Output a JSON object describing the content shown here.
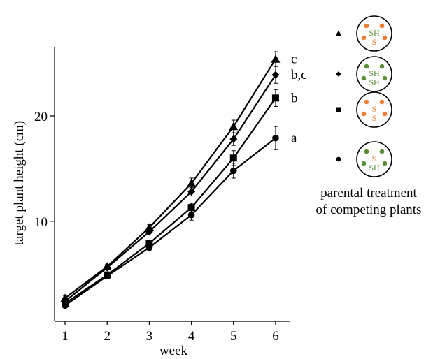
{
  "colors": {
    "orange": "#ee7d36",
    "green": "#5a8e3a",
    "line": "#000000"
  },
  "chart_data": {
    "type": "line",
    "title": "",
    "xlabel": "week",
    "ylabel": "target plant height (cm)",
    "x": [
      1,
      2,
      3,
      4,
      5,
      6
    ],
    "xticks": [
      "1",
      "2",
      "3",
      "4",
      "5",
      "6"
    ],
    "yticks": [
      "10",
      "20"
    ],
    "xlim": [
      0.75,
      6.35
    ],
    "ylim": [
      0.5,
      26.5
    ],
    "grid": false,
    "legend_position": "right",
    "series": [
      {
        "marker": "triangle",
        "values": [
          2.7,
          5.7,
          9.4,
          13.6,
          19.0,
          25.4
        ],
        "errors": [
          0.2,
          0.2,
          0.3,
          0.5,
          0.6,
          0.7
        ],
        "sig_label": "c",
        "pot": {
          "dots": "orange",
          "top_label": "SH",
          "top_color": "green",
          "bottom_label": "S",
          "bottom_color": "orange"
        }
      },
      {
        "marker": "diamond",
        "values": [
          2.4,
          5.6,
          9.0,
          12.8,
          17.8,
          23.9
        ],
        "errors": [
          0.2,
          0.2,
          0.3,
          0.4,
          0.6,
          0.8
        ],
        "sig_label": "b,c",
        "pot": {
          "dots": "green",
          "top_label": "SH",
          "top_color": "green",
          "bottom_label": "SH",
          "bottom_color": "green"
        }
      },
      {
        "marker": "square",
        "values": [
          2.2,
          4.9,
          7.9,
          11.3,
          16.0,
          21.7
        ],
        "errors": [
          0.2,
          0.2,
          0.3,
          0.4,
          0.7,
          0.8
        ],
        "sig_label": "b",
        "pot": {
          "dots": "orange",
          "top_label": "S",
          "top_color": "orange",
          "bottom_label": "S",
          "bottom_color": "orange"
        }
      },
      {
        "marker": "circle",
        "values": [
          2.0,
          4.8,
          7.5,
          10.6,
          14.8,
          17.9
        ],
        "errors": [
          0.2,
          0.2,
          0.3,
          0.5,
          0.7,
          1.1
        ],
        "sig_label": "a",
        "pot": {
          "dots": "green",
          "top_label": "S",
          "top_color": "orange",
          "bottom_label": "SH",
          "bottom_color": "green"
        }
      }
    ],
    "legend_caption": [
      "parental treatment",
      "of competing plants"
    ]
  }
}
